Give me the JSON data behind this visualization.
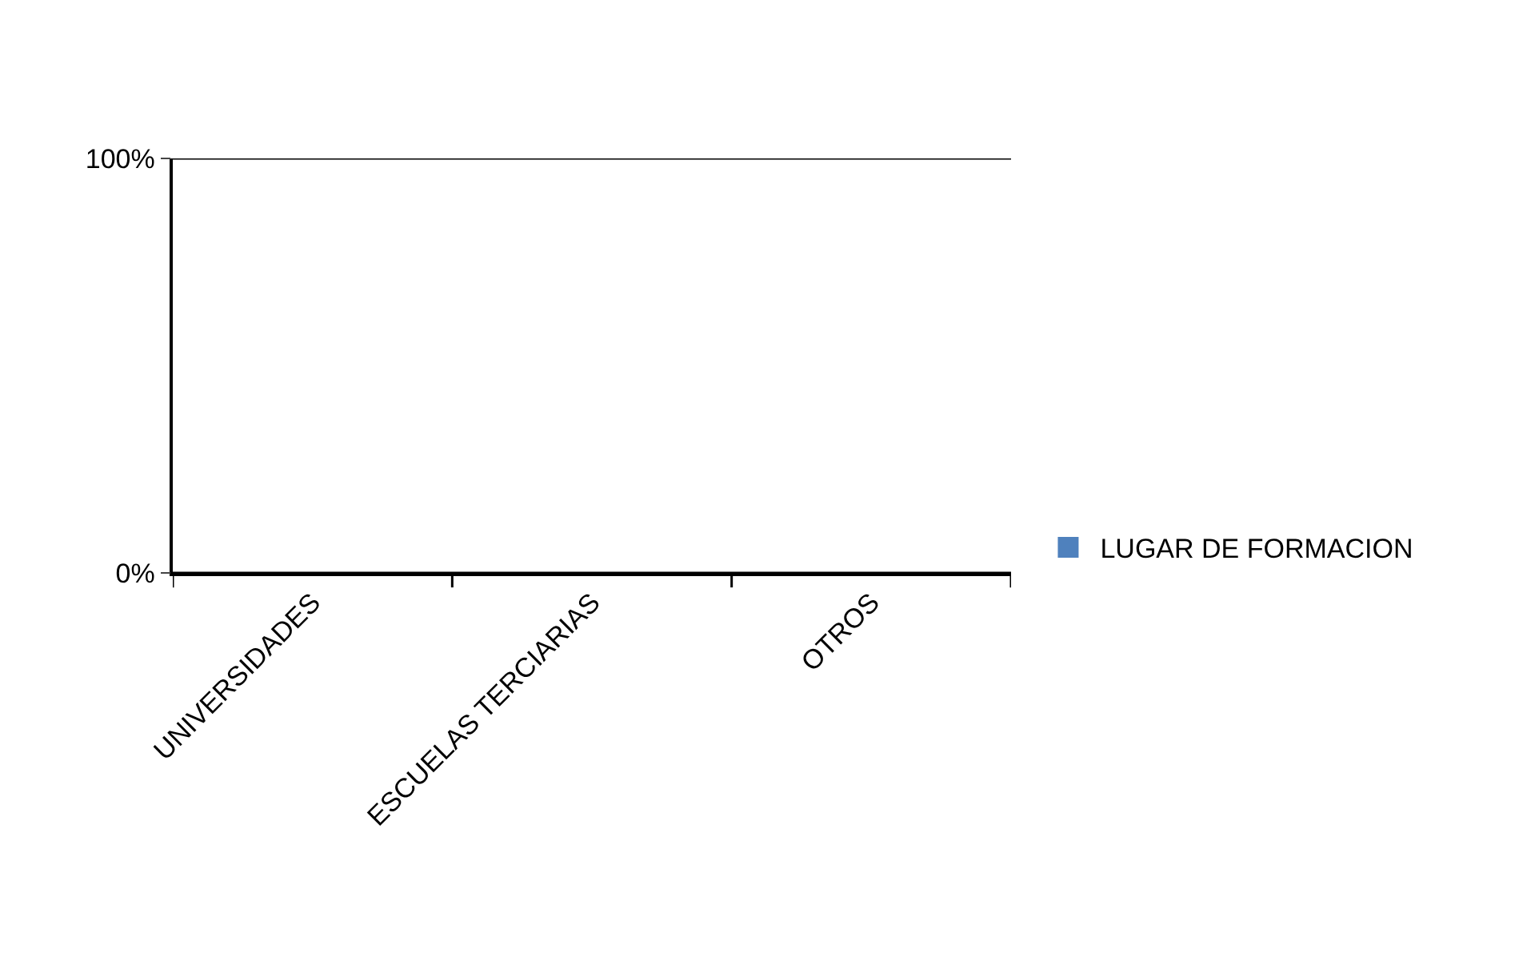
{
  "chart_data": {
    "type": "bar",
    "categories": [
      "UNIVERSIDADES",
      "ESCUELAS TERCIARIAS",
      "OTROS"
    ],
    "series": [
      {
        "name": "LUGAR DE FORMACION",
        "color": "#4f81bd",
        "values": [
          0,
          0,
          0
        ]
      }
    ],
    "ylim": [
      0,
      100
    ],
    "yticks": [
      {
        "value": 0,
        "label": "0%"
      },
      {
        "value": 100,
        "label": "100%"
      }
    ],
    "grid": "y",
    "legend": "right"
  }
}
